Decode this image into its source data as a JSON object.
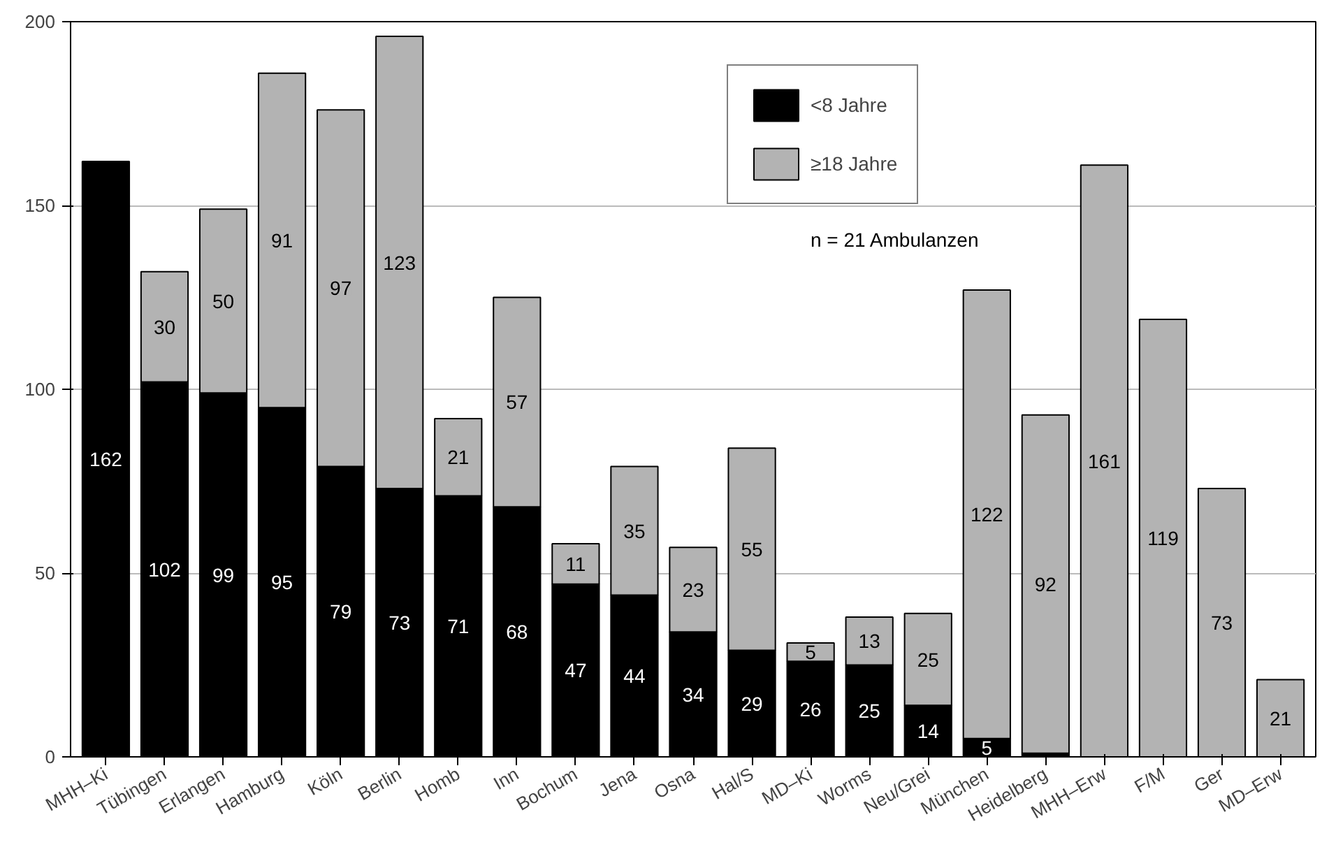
{
  "chart_data": {
    "type": "bar",
    "stacked": true,
    "categories": [
      "MHH–Ki",
      "Tübingen",
      "Erlangen",
      "Hamburg",
      "Köln",
      "Berlin",
      "Homb",
      "Inn",
      "Bochum",
      "Jena",
      "Osna",
      "Hal/S",
      "MD–Ki",
      "Worms",
      "Neu/Grei",
      "München",
      "Heidelberg",
      "MHH–Erw",
      "F/M",
      "Ger",
      "MD–Erw"
    ],
    "series": [
      {
        "name": "<8 Jahre",
        "color": "#000000",
        "values": [
          162,
          102,
          99,
          95,
          79,
          73,
          71,
          68,
          47,
          44,
          34,
          29,
          26,
          25,
          14,
          5,
          1,
          0,
          0,
          0,
          0
        ],
        "value_labels": [
          "162",
          "102",
          "99",
          "95",
          "79",
          "73",
          "71",
          "68",
          "47",
          "44",
          "34",
          "29",
          "26",
          "25",
          "14",
          "5",
          null,
          null,
          null,
          null,
          null
        ]
      },
      {
        "name": "≥18 Jahre",
        "color": "#b3b3b3",
        "values": [
          null,
          30,
          50,
          91,
          97,
          123,
          21,
          57,
          11,
          35,
          23,
          55,
          5,
          13,
          25,
          122,
          92,
          161,
          119,
          73,
          21
        ],
        "value_labels": [
          null,
          "30",
          "50",
          "91",
          "97",
          "123",
          "21",
          "57",
          "11",
          "35",
          "23",
          "55",
          "5",
          "13",
          "25",
          "122",
          "92",
          "161",
          "119",
          "73",
          "21"
        ]
      }
    ],
    "ylim": [
      0,
      200
    ],
    "yticks": [
      0,
      50,
      100,
      150,
      200
    ],
    "grid": "y",
    "legend": "top",
    "annotations": [
      "n = 21 Ambulanzen"
    ]
  }
}
